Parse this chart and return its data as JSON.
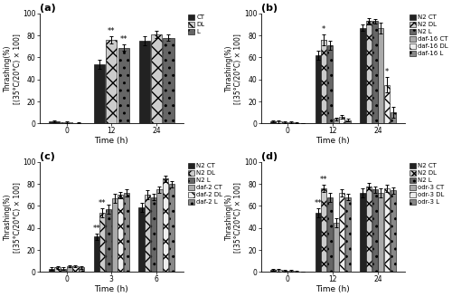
{
  "panel_a": {
    "title": "(a)",
    "x_labels": [
      "0",
      "12",
      "24"
    ],
    "series": {
      "CT": {
        "values": [
          2,
          54,
          75
        ],
        "errors": [
          1,
          4,
          4
        ],
        "color": "#222222",
        "hatch": ""
      },
      "DL": {
        "values": [
          1,
          76,
          81
        ],
        "errors": [
          1,
          3,
          3
        ],
        "color": "#cccccc",
        "hatch": "xx"
      },
      "L": {
        "values": [
          0.5,
          69,
          78
        ],
        "errors": [
          0.5,
          3,
          3
        ],
        "color": "#666666",
        "hatch": ".."
      }
    },
    "significance": {
      "1": [
        {
          "label": "**",
          "series_idx": 1
        },
        {
          "label": "**",
          "series_idx": 2
        }
      ]
    },
    "ylim": [
      0,
      100
    ],
    "ylabel": "Thrashing(%)\n[(35°C/20°C) × 100]",
    "xlabel": "Time (h)"
  },
  "panel_b": {
    "title": "(b)",
    "x_labels": [
      "0",
      "12",
      "24"
    ],
    "series": {
      "N2 CT": {
        "values": [
          2,
          62,
          87
        ],
        "errors": [
          1,
          4,
          3
        ],
        "color": "#222222",
        "hatch": ""
      },
      "N2 DL": {
        "values": [
          1.5,
          76,
          93
        ],
        "errors": [
          1,
          5,
          3
        ],
        "color": "#cccccc",
        "hatch": "xx"
      },
      "N2 L": {
        "values": [
          1,
          71,
          93
        ],
        "errors": [
          1,
          4,
          2
        ],
        "color": "#666666",
        "hatch": ".."
      },
      "daf-16 CT": {
        "values": [
          1,
          4,
          87
        ],
        "errors": [
          0.5,
          1,
          5
        ],
        "color": "#aaaaaa",
        "hatch": ""
      },
      "daf-16 DL": {
        "values": [
          0.5,
          6,
          35
        ],
        "errors": [
          0.3,
          2,
          7
        ],
        "color": "#eeeeee",
        "hatch": "xx"
      },
      "daf-16 L": {
        "values": [
          0.3,
          3,
          10
        ],
        "errors": [
          0.3,
          1,
          5
        ],
        "color": "#888888",
        "hatch": ".."
      }
    },
    "significance": {
      "1": [
        {
          "label": "*",
          "series_idx": 1
        }
      ],
      "2": [
        {
          "label": "*",
          "series_idx": 4
        }
      ]
    },
    "ylim": [
      0,
      100
    ],
    "ylabel": "Thrashing(%)\n[(35°C/20°C) × 100]",
    "xlabel": "Time (h)"
  },
  "panel_c": {
    "title": "(c)",
    "x_labels": [
      "0",
      "3",
      "6"
    ],
    "series": {
      "N2 CT": {
        "values": [
          3,
          32,
          59
        ],
        "errors": [
          1,
          3,
          4
        ],
        "color": "#222222",
        "hatch": ""
      },
      "N2 DL": {
        "values": [
          4,
          54,
          70
        ],
        "errors": [
          1,
          4,
          4
        ],
        "color": "#cccccc",
        "hatch": "xx"
      },
      "N2 L": {
        "values": [
          3,
          57,
          68
        ],
        "errors": [
          1,
          4,
          3
        ],
        "color": "#666666",
        "hatch": ".."
      },
      "daf-2 CT": {
        "values": [
          5,
          67,
          75
        ],
        "errors": [
          1,
          4,
          3
        ],
        "color": "#aaaaaa",
        "hatch": ""
      },
      "daf-2 DL": {
        "values": [
          5,
          70,
          85
        ],
        "errors": [
          1,
          3,
          3
        ],
        "color": "#eeeeee",
        "hatch": "xx"
      },
      "daf-2 L": {
        "values": [
          4,
          72,
          80
        ],
        "errors": [
          1,
          3,
          3
        ],
        "color": "#888888",
        "hatch": ".."
      }
    },
    "significance": {
      "1": [
        {
          "label": "**",
          "series_idx": 0
        },
        {
          "label": "**",
          "series_idx": 1
        }
      ]
    },
    "ylim": [
      0,
      100
    ],
    "ylabel": "Thrashing(%)\n[(35°C/20°C) × 100]",
    "xlabel": "Time (h)"
  },
  "panel_d": {
    "title": "(d)",
    "x_labels": [
      "0",
      "12",
      "24"
    ],
    "series": {
      "N2 CT": {
        "values": [
          2,
          54,
          72
        ],
        "errors": [
          1,
          4,
          4
        ],
        "color": "#222222",
        "hatch": ""
      },
      "N2 DL": {
        "values": [
          1.5,
          76,
          78
        ],
        "errors": [
          1,
          3,
          3
        ],
        "color": "#cccccc",
        "hatch": "xx"
      },
      "N2 L": {
        "values": [
          1,
          68,
          75
        ],
        "errors": [
          1,
          4,
          3
        ],
        "color": "#666666",
        "hatch": ".."
      },
      "odr-3 CT": {
        "values": [
          1,
          45,
          72
        ],
        "errors": [
          0.5,
          4,
          4
        ],
        "color": "#aaaaaa",
        "hatch": ""
      },
      "odr-3 DL": {
        "values": [
          0.5,
          72,
          76
        ],
        "errors": [
          0.3,
          3,
          3
        ],
        "color": "#eeeeee",
        "hatch": "xx"
      },
      "odr-3 L": {
        "values": [
          0.3,
          68,
          74
        ],
        "errors": [
          0.3,
          3,
          3
        ],
        "color": "#888888",
        "hatch": ".."
      }
    },
    "significance": {
      "1": [
        {
          "label": "**",
          "series_idx": 0
        },
        {
          "label": "**",
          "series_idx": 1
        }
      ]
    },
    "ylim": [
      0,
      100
    ],
    "ylabel": "Thrashing(%)\n[(35°C/20°C) × 100]",
    "xlabel": "Time (h)"
  },
  "fontsize_title": 8,
  "fontsize_axis": 5.5,
  "fontsize_tick": 5.5,
  "fontsize_legend": 5,
  "fontsize_sig": 6
}
